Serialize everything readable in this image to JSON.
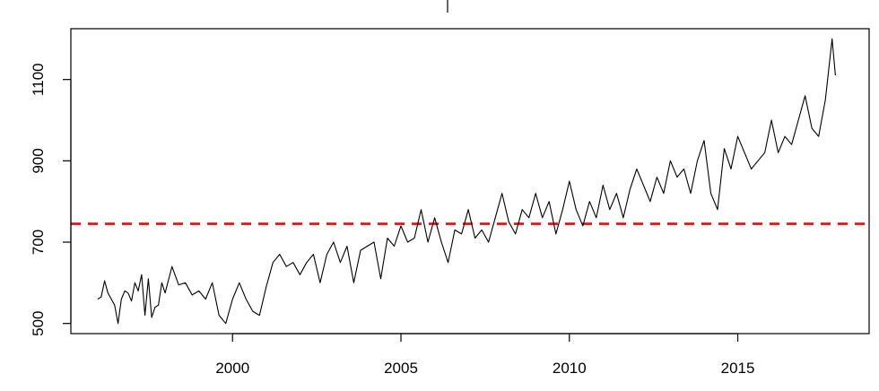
{
  "chart_data": {
    "type": "line",
    "title": "",
    "xlabel": "",
    "ylabel": "",
    "xlim": [
      1995.2,
      2018.9
    ],
    "ylim": [
      475,
      1225
    ],
    "x_ticks": [
      {
        "value": 2000,
        "label": "2000"
      },
      {
        "value": 2005,
        "label": "2005"
      },
      {
        "value": 2010,
        "label": "2010"
      },
      {
        "value": 2015,
        "label": "2015"
      }
    ],
    "y_ticks": [
      {
        "value": 500,
        "label": "500"
      },
      {
        "value": 700,
        "label": "700"
      },
      {
        "value": 900,
        "label": "900"
      },
      {
        "value": 1100,
        "label": "1100"
      }
    ],
    "grid": false,
    "reference_line": {
      "y": 745,
      "color": "#ff0000",
      "style": "dashed"
    },
    "series": [
      {
        "color": "#000000",
        "x": [
          1996.0,
          1996.1,
          1996.2,
          1996.3,
          1996.4,
          1996.5,
          1996.6,
          1996.7,
          1996.8,
          1996.9,
          1997.0,
          1997.1,
          1997.2,
          1997.3,
          1997.4,
          1997.5,
          1997.6,
          1997.7,
          1997.8,
          1997.9,
          1998.0,
          1998.2,
          1998.4,
          1998.6,
          1998.8,
          1999.0,
          1999.2,
          1999.4,
          1999.6,
          1999.8,
          2000.0,
          2000.2,
          2000.4,
          2000.6,
          2000.8,
          2001.0,
          2001.2,
          2001.4,
          2001.6,
          2001.8,
          2002.0,
          2002.2,
          2002.4,
          2002.6,
          2002.8,
          2003.0,
          2003.2,
          2003.4,
          2003.6,
          2003.8,
          2004.0,
          2004.2,
          2004.4,
          2004.6,
          2004.8,
          2005.0,
          2005.2,
          2005.4,
          2005.6,
          2005.8,
          2006.0,
          2006.2,
          2006.4,
          2006.6,
          2006.8,
          2007.0,
          2007.2,
          2007.4,
          2007.6,
          2007.8,
          2008.0,
          2008.2,
          2008.4,
          2008.6,
          2008.8,
          2009.0,
          2009.2,
          2009.4,
          2009.6,
          2009.8,
          2010.0,
          2010.2,
          2010.4,
          2010.6,
          2010.8,
          2011.0,
          2011.2,
          2011.4,
          2011.6,
          2011.8,
          2012.0,
          2012.2,
          2012.4,
          2012.6,
          2012.8,
          2013.0,
          2013.2,
          2013.4,
          2013.6,
          2013.8,
          2014.0,
          2014.2,
          2014.4,
          2014.6,
          2014.8,
          2015.0,
          2015.2,
          2015.4,
          2015.6,
          2015.8,
          2016.0,
          2016.2,
          2016.4,
          2016.6,
          2016.8,
          2017.0,
          2017.2,
          2017.4,
          2017.6,
          2017.8,
          2017.9
        ],
        "y": [
          560,
          565,
          605,
          575,
          560,
          545,
          500,
          560,
          580,
          575,
          555,
          600,
          580,
          620,
          520,
          610,
          515,
          540,
          545,
          600,
          575,
          640,
          595,
          600,
          570,
          580,
          560,
          600,
          520,
          500,
          560,
          600,
          560,
          530,
          520,
          590,
          650,
          670,
          640,
          650,
          620,
          650,
          670,
          600,
          670,
          700,
          650,
          690,
          600,
          680,
          690,
          700,
          610,
          710,
          690,
          740,
          700,
          710,
          780,
          700,
          760,
          700,
          650,
          730,
          720,
          780,
          710,
          730,
          700,
          760,
          820,
          750,
          720,
          780,
          760,
          820,
          760,
          800,
          720,
          780,
          850,
          780,
          740,
          800,
          760,
          840,
          780,
          820,
          760,
          830,
          880,
          840,
          800,
          860,
          820,
          900,
          860,
          880,
          820,
          900,
          950,
          820,
          780,
          930,
          880,
          960,
          920,
          880,
          900,
          920,
          1000,
          920,
          960,
          940,
          1000,
          1060,
          980,
          960,
          1050,
          1200,
          1110
        ]
      }
    ]
  }
}
